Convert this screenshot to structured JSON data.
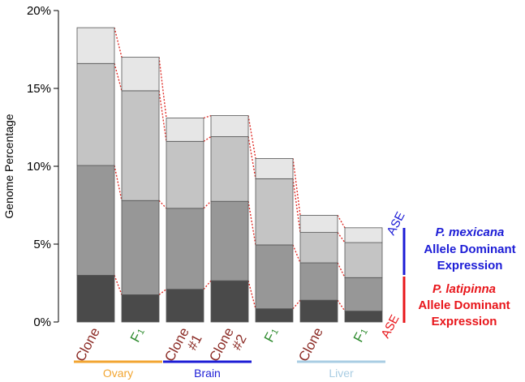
{
  "chart_data": {
    "type": "bar",
    "stacked": true,
    "ylabel": "Genome Percentage",
    "ylim": [
      0,
      20
    ],
    "yticks": [
      "0%",
      "5%",
      "10%",
      "15%",
      "20%"
    ],
    "ytick_values": [
      0,
      5,
      10,
      15,
      20
    ],
    "categories": [
      "Clone",
      "F1",
      "Clone #1",
      "Clone #2",
      "F1",
      "Clone",
      "F1"
    ],
    "category_labels": [
      {
        "text": "Clone",
        "sub": "",
        "color": "#8b2a24"
      },
      {
        "text": "F",
        "sub": "1",
        "color": "#2e8b2e"
      },
      {
        "text": "Clone #1",
        "sub": "",
        "color": "#8b2a24"
      },
      {
        "text": "Clone #2",
        "sub": "",
        "color": "#8b2a24"
      },
      {
        "text": "F",
        "sub": "1",
        "color": "#2e8b2e"
      },
      {
        "text": "Clone",
        "sub": "",
        "color": "#8b2a24"
      },
      {
        "text": "F",
        "sub": "1",
        "color": "#2e8b2e"
      }
    ],
    "groups": [
      {
        "label": "Ovary",
        "color": "#f2a531",
        "from": 0,
        "to": 1
      },
      {
        "label": "Brain",
        "color": "#1c1cd6",
        "from": 2,
        "to": 3
      },
      {
        "label": "Liver",
        "color": "#a9cde3",
        "from": 5,
        "to": 6
      }
    ],
    "series": [
      {
        "values": [
          3.0,
          1.75,
          2.1,
          2.65,
          0.85,
          1.4,
          0.7
        ],
        "color": "#4a4a4a"
      },
      {
        "values": [
          7.05,
          6.05,
          5.2,
          5.1,
          4.1,
          2.4,
          2.15
        ],
        "color": "#979797"
      },
      {
        "values": [
          6.55,
          7.05,
          4.3,
          4.15,
          4.25,
          1.95,
          2.25
        ],
        "color": "#c4c4c4"
      },
      {
        "values": [
          2.3,
          2.15,
          1.5,
          1.35,
          1.3,
          1.1,
          0.95
        ],
        "color": "#e6e6e6"
      }
    ],
    "connector_color": "#e0302a"
  },
  "annotations": {
    "ase_top": {
      "label": "ASE",
      "color": "#1c1cd6"
    },
    "ase_bottom": {
      "label": "ASE",
      "color": "#e8161b"
    },
    "mexicana": {
      "species": "P. mexicana",
      "line1": "Allele Dominant",
      "line2": "Expression",
      "color": "#1c1cd6"
    },
    "latipinna": {
      "species": "P. latipinna",
      "line1": "Allele Dominant",
      "line2": "Expression",
      "color": "#e8161b"
    }
  }
}
